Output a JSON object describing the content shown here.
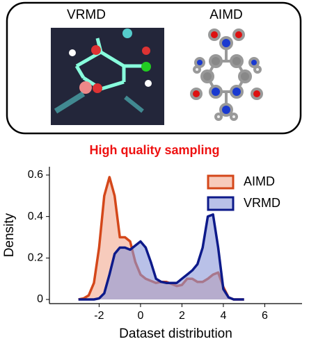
{
  "panel": {
    "left_label": "VRMD",
    "right_label": "AIMD"
  },
  "chart_data": {
    "type": "area",
    "title": "High quality sampling",
    "xlabel": "Dataset distribution",
    "ylabel": "Density",
    "x": [
      -3,
      -2.75,
      -2.5,
      -2.25,
      -2,
      -1.75,
      -1.5,
      -1.25,
      -1,
      -0.75,
      -0.5,
      -0.25,
      0,
      0.25,
      0.5,
      0.75,
      1,
      1.25,
      1.5,
      1.75,
      2,
      2.25,
      2.5,
      2.75,
      3,
      3.25,
      3.5,
      3.75,
      4,
      4.25,
      4.5,
      4.75,
      5
    ],
    "series": [
      {
        "name": "AIMD",
        "color": "#d4471a",
        "fill": "#f2a98f",
        "values": [
          0,
          0.005,
          0.02,
          0.08,
          0.25,
          0.5,
          0.59,
          0.5,
          0.3,
          0.3,
          0.28,
          0.18,
          0.12,
          0.1,
          0.09,
          0.08,
          0.085,
          0.085,
          0.075,
          0.065,
          0.07,
          0.1,
          0.1,
          0.085,
          0.085,
          0.1,
          0.12,
          0.13,
          0.06,
          0.01,
          0,
          0,
          0
        ]
      },
      {
        "name": "VRMD",
        "color": "#0d1a8a",
        "fill": "#8a97d8",
        "values": [
          0,
          0,
          0,
          0,
          0.005,
          0.03,
          0.12,
          0.22,
          0.25,
          0.25,
          0.24,
          0.26,
          0.28,
          0.25,
          0.18,
          0.1,
          0.085,
          0.08,
          0.08,
          0.08,
          0.1,
          0.12,
          0.14,
          0.17,
          0.25,
          0.4,
          0.41,
          0.25,
          0.05,
          0.01,
          0,
          0,
          0
        ]
      }
    ],
    "xlim": [
      -4.4,
      7.8
    ],
    "ylim": [
      -0.02,
      0.64
    ],
    "xticks": [
      -2,
      0,
      2,
      4,
      6
    ],
    "yticks": [
      0,
      0.2,
      0.4,
      0.6
    ],
    "legend": "upper right"
  }
}
